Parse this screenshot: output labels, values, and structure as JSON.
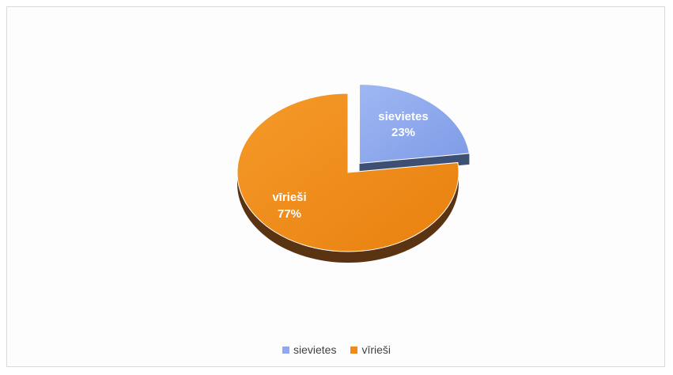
{
  "chart_data": {
    "type": "pie",
    "title": "",
    "labels": [
      "sievietes",
      "vīrieši"
    ],
    "values": [
      23,
      77
    ],
    "unit": "%",
    "colors": [
      "#8ea9ee",
      "#f28a1a"
    ],
    "data_labels": [
      {
        "category": "sievietes",
        "value": "23%"
      },
      {
        "category": "vīrieši",
        "value": "77%"
      }
    ],
    "exploded_slice": "sievietes",
    "style": "3d",
    "legend_position": "bottom"
  }
}
